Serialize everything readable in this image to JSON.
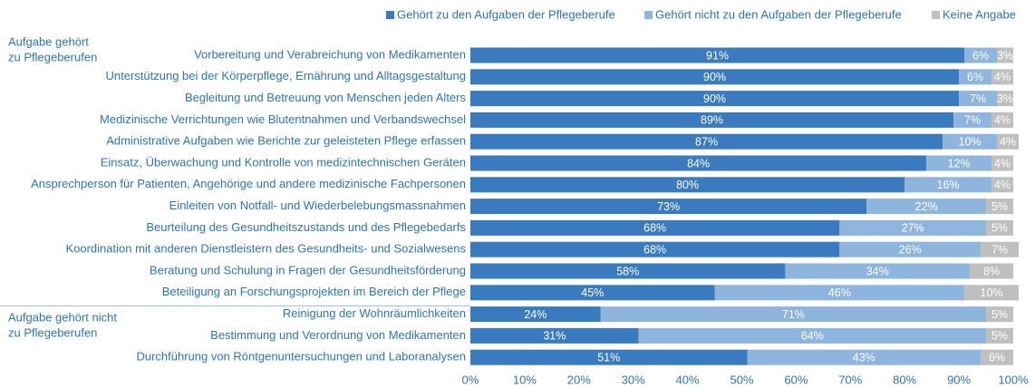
{
  "chart_data": {
    "type": "stacked_bar_horizontal",
    "categories": [
      "Vorbereitung und Verabreichung von Medikamenten",
      "Unterstützung bei der Körperpflege, Ernährung und Alltagsgestaltung",
      "Begleitung und Betreuung von Menschen jeden Alters",
      "Medizinische Verrichtungen wie Blutentnahmen und Verbandswechsel",
      "Administrative Aufgaben wie Berichte zur geleisteten Pflege erfassen",
      "Einsatz, Überwachung und Kontrolle von medizintechnischen Geräten",
      "Ansprechperson für Patienten, Angehörige und andere medizinische Fachpersonen",
      "Einleiten von Notfall- und Wiederbelebungsmassnahmen",
      "Beurteilung des Gesundheitszustands und des Pflegebedarfs",
      "Koordination mit anderen Dienstleistern des Gesundheits- und Sozialwesens",
      "Beratung und Schulung in Fragen der Gesundheitsförderung",
      "Beteiligung an Forschungsprojekten im Bereich der Pflege",
      "Reinigung der Wohnräumlichkeiten",
      "Bestimmung und Verordnung von Medikamenten",
      "Durchführung von Röntgenuntersuchungen und Laboranalysen"
    ],
    "series": [
      {
        "name": "Gehört zu den Aufgaben der Pflegeberufe",
        "color": "#3a7abf",
        "values": [
          91,
          90,
          90,
          89,
          87,
          84,
          80,
          73,
          68,
          68,
          58,
          45,
          24,
          31,
          51
        ],
        "value_labels": [
          "91%",
          "90%",
          "90%",
          "89%",
          "87%",
          "84%",
          "80%",
          "73%",
          "68%",
          "68%",
          "58%",
          "45%",
          "24%",
          "31%",
          "51%"
        ]
      },
      {
        "name": "Gehört nicht zu den Aufgaben der Pflegeberufe",
        "color": "#8db5de",
        "values": [
          6,
          6,
          7,
          7,
          10,
          12,
          16,
          22,
          27,
          26,
          34,
          46,
          71,
          64,
          43
        ],
        "value_labels": [
          "6%",
          "6%",
          "7%",
          "7%",
          "10%",
          "12%",
          "16%",
          "22%",
          "27%",
          "26%",
          "34%",
          "46%",
          "71%",
          "64%",
          "43%"
        ]
      },
      {
        "name": "Keine Angabe",
        "color": "#bfbfbf",
        "values": [
          3,
          4,
          3,
          4,
          4,
          4,
          4,
          5,
          5,
          7,
          8,
          10,
          5,
          5,
          6
        ],
        "value_labels": [
          "3%",
          "4%",
          "3%",
          "4%",
          "4%",
          "4%",
          "4%",
          "5%",
          "5%",
          "7%",
          "8%",
          "10%",
          "5%",
          "5%",
          "6%"
        ]
      }
    ],
    "row_groups": [
      {
        "label_lines": [
          "Aufgabe gehört",
          "zu Pflegeberufen"
        ]
      },
      {
        "label_lines": [
          "Aufgabe gehört nicht",
          "zu Pflegeberufen"
        ]
      }
    ],
    "xlim": [
      0,
      100
    ],
    "xticks": [
      {
        "value": 0,
        "label": "0%"
      },
      {
        "value": 10,
        "label": "10%"
      },
      {
        "value": 20,
        "label": "20%"
      },
      {
        "value": 30,
        "label": "30%"
      },
      {
        "value": 40,
        "label": "40%"
      },
      {
        "value": 50,
        "label": "50%"
      },
      {
        "value": 60,
        "label": "60%"
      },
      {
        "value": 70,
        "label": "70%"
      },
      {
        "value": 80,
        "label": "80%"
      },
      {
        "value": 90,
        "label": "90%"
      },
      {
        "value": 100,
        "label": "100%"
      }
    ],
    "legend": "top-right"
  }
}
